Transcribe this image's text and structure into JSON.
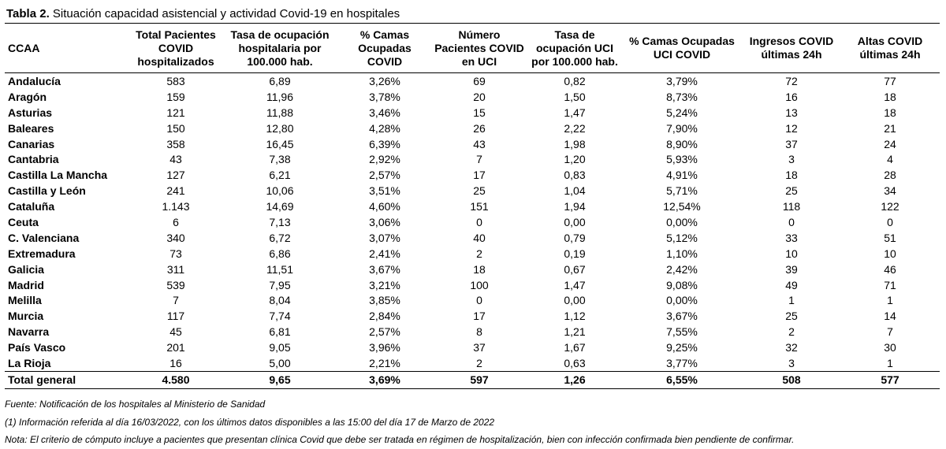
{
  "title": {
    "prefix": "Tabla 2.",
    "text": " Situación capacidad asistencial y actividad Covid-19 en hospitales"
  },
  "headers": [
    "CCAA",
    "Total Pacientes COVID hospitalizados",
    "Tasa de ocupación hospitalaria por 100.000 hab.",
    "% Camas Ocupadas COVID",
    "Número Pacientes COVID en UCI",
    "Tasa de ocupación UCI por 100.000 hab.",
    "% Camas Ocupadas UCI COVID",
    "Ingresos COVID últimas 24h",
    "Altas COVID últimas 24h"
  ],
  "rows": [
    [
      "Andalucía",
      "583",
      "6,89",
      "3,26%",
      "69",
      "0,82",
      "3,79%",
      "72",
      "77"
    ],
    [
      "Aragón",
      "159",
      "11,96",
      "3,78%",
      "20",
      "1,50",
      "8,73%",
      "16",
      "18"
    ],
    [
      "Asturias",
      "121",
      "11,88",
      "3,46%",
      "15",
      "1,47",
      "5,24%",
      "13",
      "18"
    ],
    [
      "Baleares",
      "150",
      "12,80",
      "4,28%",
      "26",
      "2,22",
      "7,90%",
      "12",
      "21"
    ],
    [
      "Canarias",
      "358",
      "16,45",
      "6,39%",
      "43",
      "1,98",
      "8,90%",
      "37",
      "24"
    ],
    [
      "Cantabria",
      "43",
      "7,38",
      "2,92%",
      "7",
      "1,20",
      "5,93%",
      "3",
      "4"
    ],
    [
      "Castilla La Mancha",
      "127",
      "6,21",
      "2,57%",
      "17",
      "0,83",
      "4,91%",
      "18",
      "28"
    ],
    [
      "Castilla y León",
      "241",
      "10,06",
      "3,51%",
      "25",
      "1,04",
      "5,71%",
      "25",
      "34"
    ],
    [
      "Cataluña",
      "1.143",
      "14,69",
      "4,60%",
      "151",
      "1,94",
      "12,54%",
      "118",
      "122"
    ],
    [
      "Ceuta",
      "6",
      "7,13",
      "3,06%",
      "0",
      "0,00",
      "0,00%",
      "0",
      "0"
    ],
    [
      "C. Valenciana",
      "340",
      "6,72",
      "3,07%",
      "40",
      "0,79",
      "5,12%",
      "33",
      "51"
    ],
    [
      "Extremadura",
      "73",
      "6,86",
      "2,41%",
      "2",
      "0,19",
      "1,10%",
      "10",
      "10"
    ],
    [
      "Galicia",
      "311",
      "11,51",
      "3,67%",
      "18",
      "0,67",
      "2,42%",
      "39",
      "46"
    ],
    [
      "Madrid",
      "539",
      "7,95",
      "3,21%",
      "100",
      "1,47",
      "9,08%",
      "49",
      "71"
    ],
    [
      "Melilla",
      "7",
      "8,04",
      "3,85%",
      "0",
      "0,00",
      "0,00%",
      "1",
      "1"
    ],
    [
      "Murcia",
      "117",
      "7,74",
      "2,84%",
      "17",
      "1,12",
      "3,67%",
      "25",
      "14"
    ],
    [
      "Navarra",
      "45",
      "6,81",
      "2,57%",
      "8",
      "1,21",
      "7,55%",
      "2",
      "7"
    ],
    [
      "País Vasco",
      "201",
      "9,05",
      "3,96%",
      "37",
      "1,67",
      "9,25%",
      "32",
      "30"
    ],
    [
      "La Rioja",
      "16",
      "5,00",
      "2,21%",
      "2",
      "0,63",
      "3,77%",
      "3",
      "1"
    ]
  ],
  "total": [
    "Total general",
    "4.580",
    "9,65",
    "3,69%",
    "597",
    "1,26",
    "6,55%",
    "508",
    "577"
  ],
  "notes": {
    "source": "Fuente: Notificación de los hospitales al Ministerio de Sanidad",
    "info": "(1) Información referida al día 16/03/2022, con los últimos datos disponibles a las 15:00 del día 17 de Marzo de 2022",
    "note": "Nota: El criterio de cómputo incluye a pacientes que presentan clínica Covid que debe ser tratada en régimen de hospitalización, bien con infección confirmada bien pendiente de confirmar."
  }
}
